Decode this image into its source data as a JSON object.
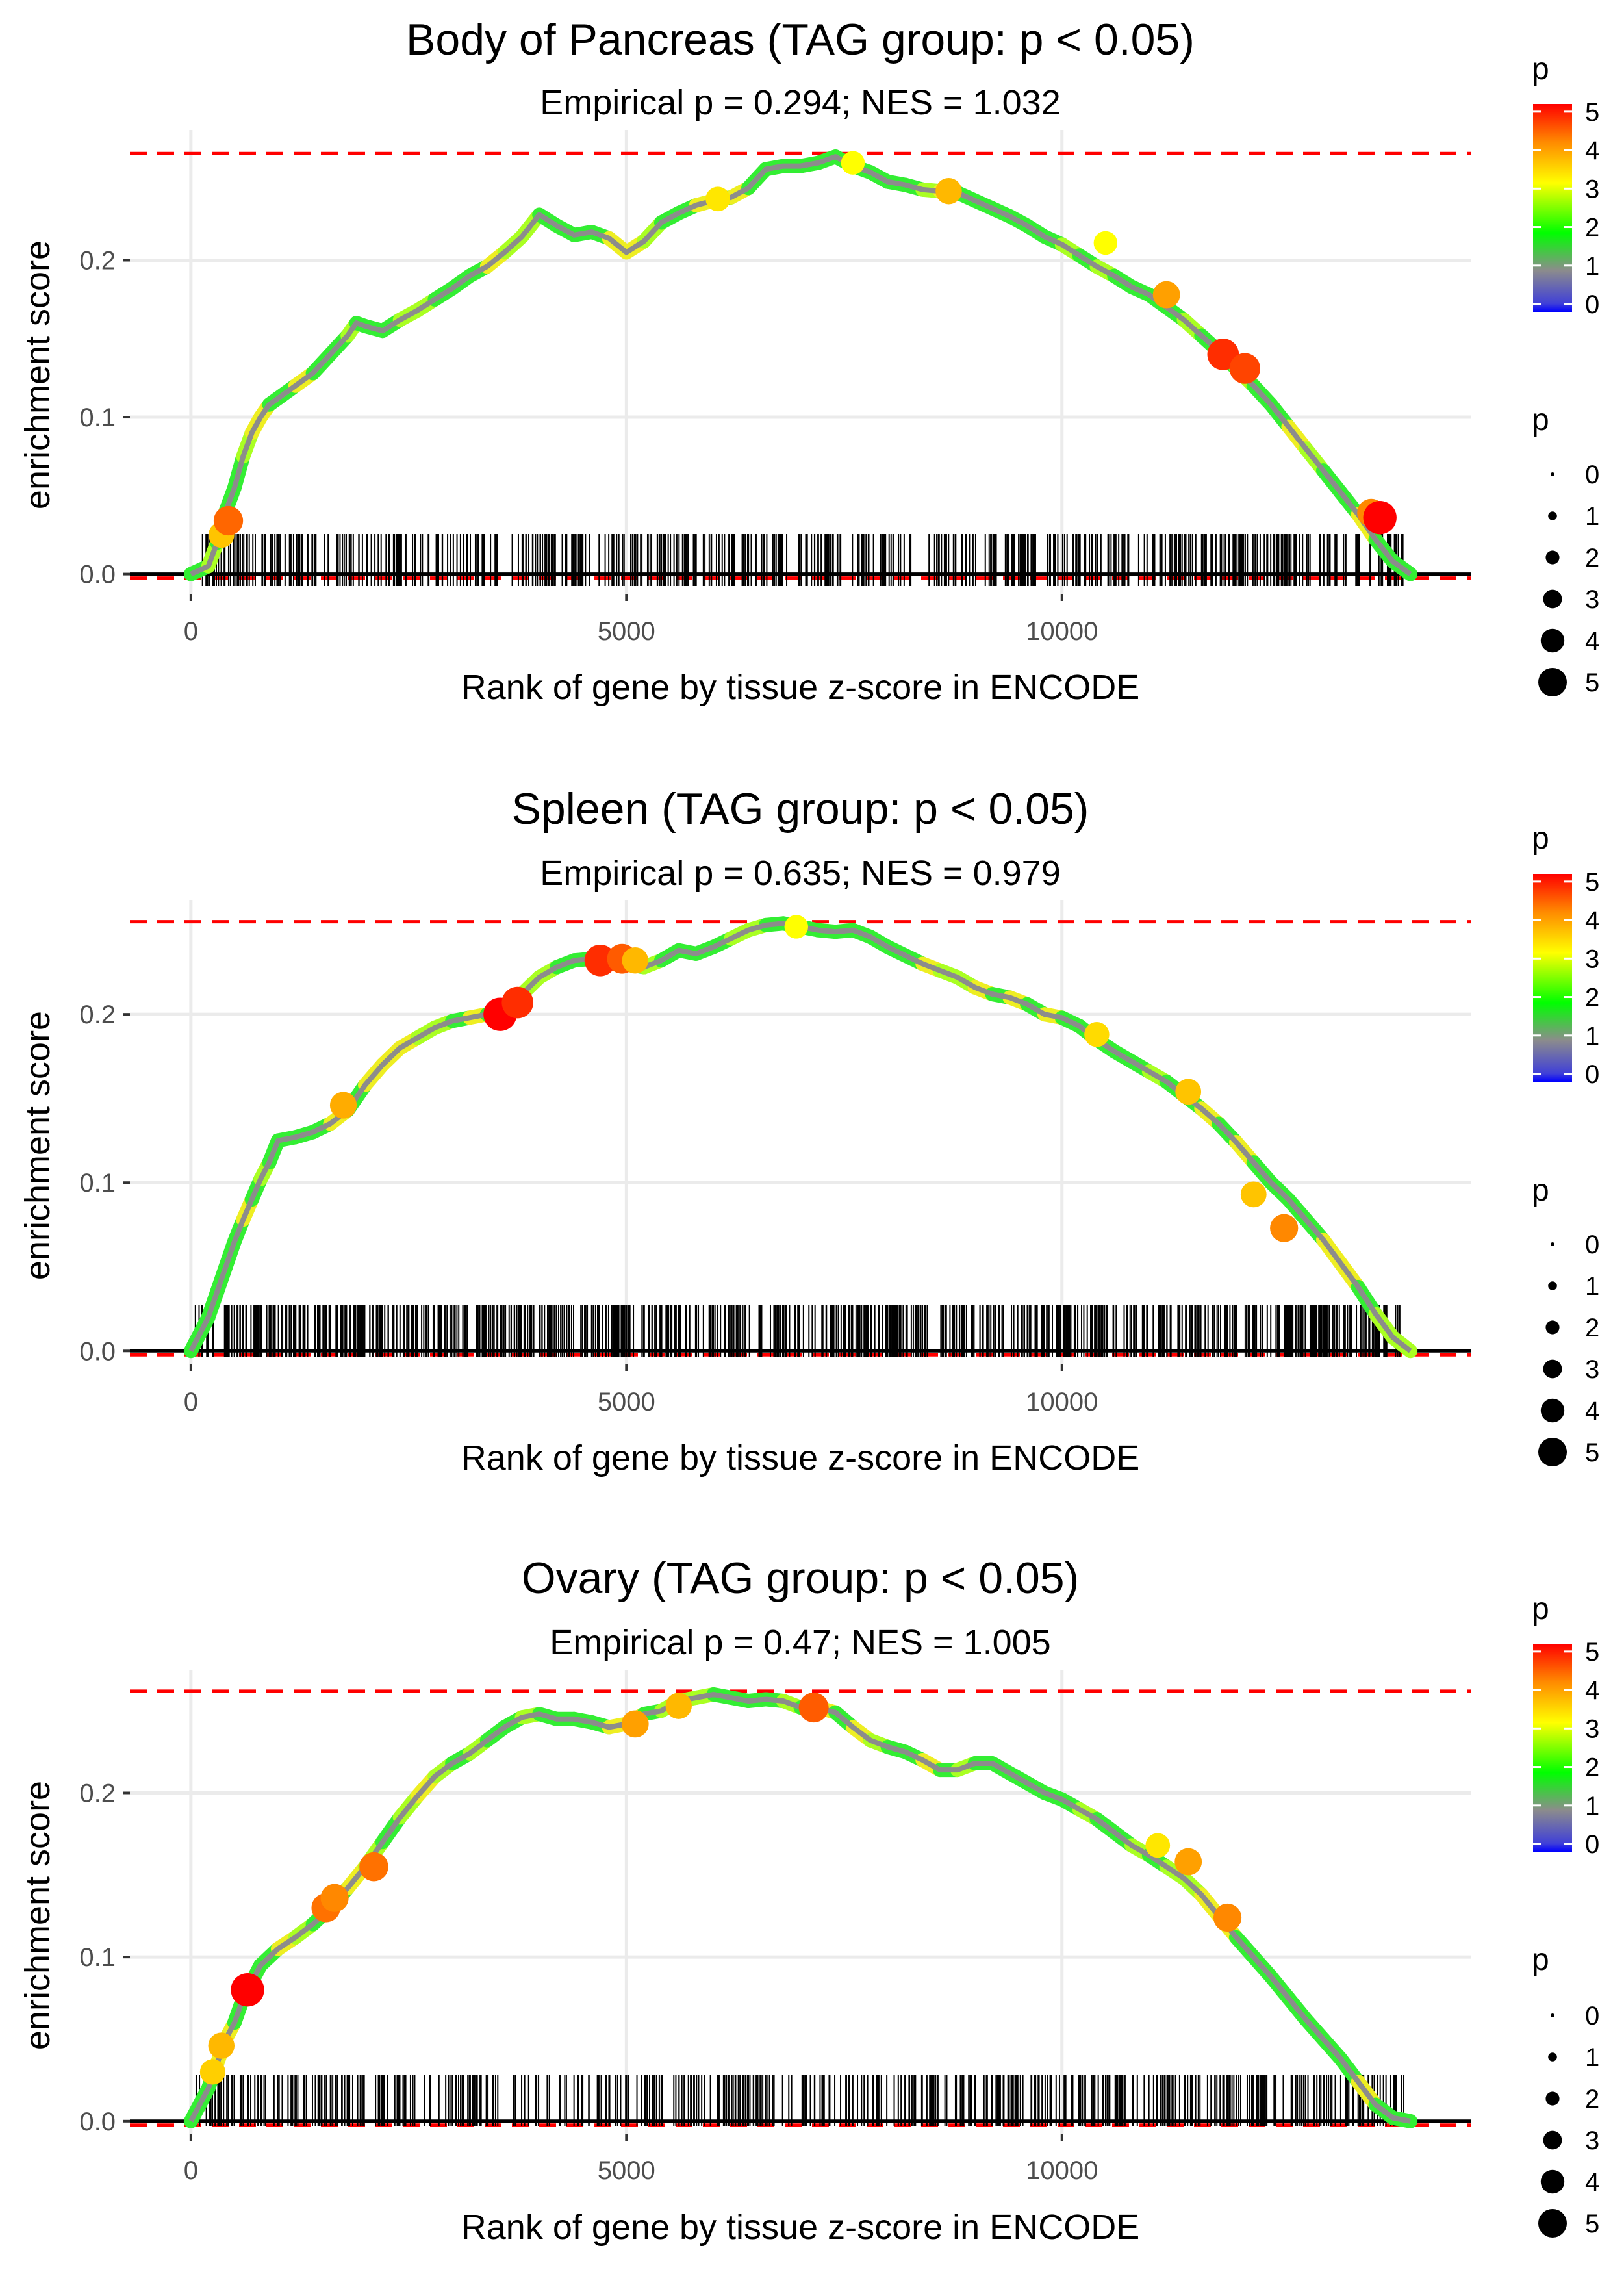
{
  "chart_data": [
    {
      "type": "line",
      "title": "Body of Pancreas (TAG group: p < 0.05)",
      "subtitle": "Empirical p = 0.294; NES = 1.032",
      "xlabel": "Rank of gene by tissue z-score in ENCODE",
      "ylabel": "enrichment score",
      "xlim": [
        -700,
        14700
      ],
      "ylim": [
        -0.013,
        0.283
      ],
      "xticks": [
        0,
        5000,
        10000
      ],
      "xtick_labels": [
        "0",
        "5000",
        "10000"
      ],
      "yticks": [
        0.0,
        0.1,
        0.2
      ],
      "ytick_labels": [
        "0.0",
        "0.1",
        "0.2"
      ],
      "max_es": 0.268,
      "curve": {
        "x": [
          0,
          200,
          300,
          400,
          500,
          600,
          700,
          800,
          900,
          1000,
          1200,
          1400,
          1600,
          1800,
          1900,
          2000,
          2200,
          2400,
          2600,
          2800,
          3000,
          3200,
          3400,
          3600,
          3800,
          4000,
          4200,
          4400,
          4600,
          4800,
          5000,
          5200,
          5400,
          5600,
          5800,
          6000,
          6200,
          6400,
          6600,
          6800,
          7000,
          7200,
          7400,
          7600,
          7800,
          8000,
          8200,
          8400,
          8600,
          8800,
          9000,
          9200,
          9400,
          9600,
          9800,
          10000,
          10200,
          10400,
          10600,
          10800,
          11000,
          11200,
          11400,
          11600,
          11800,
          12000,
          12200,
          12400,
          12600,
          12800,
          13000,
          13200,
          13400,
          13600,
          13800,
          14000
        ],
        "y": [
          0.0,
          0.005,
          0.02,
          0.04,
          0.055,
          0.075,
          0.09,
          0.1,
          0.108,
          0.112,
          0.12,
          0.128,
          0.14,
          0.152,
          0.16,
          0.158,
          0.155,
          0.162,
          0.168,
          0.175,
          0.182,
          0.19,
          0.196,
          0.205,
          0.215,
          0.229,
          0.222,
          0.216,
          0.218,
          0.214,
          0.205,
          0.212,
          0.224,
          0.23,
          0.235,
          0.238,
          0.24,
          0.246,
          0.258,
          0.26,
          0.26,
          0.262,
          0.266,
          0.26,
          0.256,
          0.25,
          0.248,
          0.245,
          0.244,
          0.243,
          0.238,
          0.233,
          0.228,
          0.222,
          0.215,
          0.21,
          0.203,
          0.196,
          0.19,
          0.183,
          0.178,
          0.17,
          0.162,
          0.152,
          0.142,
          0.131,
          0.12,
          0.108,
          0.094,
          0.08,
          0.066,
          0.052,
          0.038,
          0.022,
          0.008,
          0.0
        ]
      },
      "highlighted_points": {
        "x": [
          350,
          430,
          6050,
          7600,
          8700,
          10500,
          11200,
          11850,
          12100,
          13550,
          13650
        ],
        "y": [
          0.025,
          0.034,
          0.239,
          0.262,
          0.244,
          0.211,
          0.178,
          0.14,
          0.131,
          0.039,
          0.036
        ],
        "p": [
          3.5,
          4.3,
          3.2,
          3.0,
          3.6,
          3.0,
          3.8,
          4.8,
          4.6,
          4.0,
          5.2
        ]
      },
      "rug_seed": 11,
      "rug_count": 560
    },
    {
      "type": "line",
      "title": "Spleen (TAG group: p < 0.05)",
      "subtitle": "Empirical p = 0.635; NES = 0.979",
      "xlabel": "Rank of gene by tissue z-score in ENCODE",
      "ylabel": "enrichment score",
      "xlim": [
        -700,
        14700
      ],
      "ylim": [
        -0.008,
        0.268
      ],
      "xticks": [
        0,
        5000,
        10000
      ],
      "xtick_labels": [
        "0",
        "5000",
        "10000"
      ],
      "yticks": [
        0.0,
        0.1,
        0.2
      ],
      "ytick_labels": [
        "0.0",
        "0.1",
        "0.2"
      ],
      "max_es": 0.255,
      "curve": {
        "x": [
          0,
          200,
          300,
          400,
          500,
          600,
          700,
          800,
          900,
          1000,
          1200,
          1400,
          1600,
          1800,
          2000,
          2200,
          2400,
          2600,
          2800,
          3000,
          3200,
          3400,
          3600,
          3800,
          4000,
          4200,
          4400,
          4600,
          4800,
          5000,
          5200,
          5400,
          5600,
          5800,
          6000,
          6200,
          6400,
          6600,
          6800,
          7000,
          7200,
          7400,
          7600,
          7800,
          8000,
          8200,
          8400,
          8600,
          8800,
          9000,
          9200,
          9400,
          9600,
          9800,
          10000,
          10200,
          10400,
          10600,
          10800,
          11000,
          11200,
          11400,
          11600,
          11800,
          12000,
          12200,
          12400,
          12600,
          12800,
          13000,
          13200,
          13400,
          13600,
          13800,
          14000
        ],
        "y": [
          0.0,
          0.02,
          0.035,
          0.05,
          0.065,
          0.078,
          0.09,
          0.102,
          0.112,
          0.125,
          0.127,
          0.13,
          0.135,
          0.143,
          0.158,
          0.17,
          0.18,
          0.186,
          0.192,
          0.196,
          0.198,
          0.2,
          0.205,
          0.212,
          0.222,
          0.228,
          0.232,
          0.233,
          0.232,
          0.23,
          0.228,
          0.232,
          0.238,
          0.236,
          0.24,
          0.245,
          0.25,
          0.253,
          0.254,
          0.252,
          0.25,
          0.249,
          0.25,
          0.246,
          0.24,
          0.235,
          0.23,
          0.226,
          0.222,
          0.216,
          0.212,
          0.21,
          0.206,
          0.2,
          0.198,
          0.193,
          0.185,
          0.178,
          0.172,
          0.166,
          0.16,
          0.152,
          0.144,
          0.135,
          0.124,
          0.112,
          0.1,
          0.09,
          0.078,
          0.066,
          0.052,
          0.038,
          0.022,
          0.008,
          0.0
        ]
      },
      "highlighted_points": {
        "x": [
          1750,
          3550,
          3750,
          4700,
          4950,
          5100,
          6950,
          10400,
          11450,
          12200,
          12550
        ],
        "y": [
          0.146,
          0.2,
          0.207,
          0.232,
          0.233,
          0.232,
          0.252,
          0.188,
          0.154,
          0.093,
          0.073
        ],
        "p": [
          3.7,
          5.2,
          4.8,
          4.8,
          4.4,
          3.6,
          3.0,
          3.3,
          3.5,
          3.5,
          4.0
        ]
      },
      "rug_seed": 23,
      "rug_count": 720
    },
    {
      "type": "line",
      "title": "Ovary (TAG group: p < 0.05)",
      "subtitle": "Empirical p = 0.47; NES = 1.005",
      "xlabel": "Rank of gene by tissue z-score in ENCODE",
      "ylabel": "enrichment score",
      "xlim": [
        -700,
        14700
      ],
      "ylim": [
        -0.008,
        0.275
      ],
      "xticks": [
        0,
        5000,
        10000
      ],
      "xtick_labels": [
        "0",
        "5000",
        "10000"
      ],
      "yticks": [
        0.0,
        0.1,
        0.2
      ],
      "ytick_labels": [
        "0.0",
        "0.1",
        "0.2"
      ],
      "max_es": 0.262,
      "curve": {
        "x": [
          0,
          200,
          300,
          400,
          500,
          600,
          700,
          800,
          900,
          1000,
          1200,
          1400,
          1600,
          1800,
          2000,
          2200,
          2400,
          2600,
          2800,
          3000,
          3200,
          3400,
          3600,
          3800,
          4000,
          4200,
          4400,
          4600,
          4800,
          5000,
          5200,
          5400,
          5600,
          5800,
          6000,
          6200,
          6400,
          6600,
          6800,
          7000,
          7200,
          7400,
          7600,
          7800,
          8000,
          8200,
          8400,
          8600,
          8800,
          9000,
          9200,
          9400,
          9600,
          9800,
          10000,
          10200,
          10400,
          10600,
          10800,
          11000,
          11200,
          11400,
          11600,
          11800,
          12000,
          12200,
          12400,
          12600,
          12800,
          13000,
          13200,
          13400,
          13600,
          13800,
          14000
        ],
        "y": [
          0.0,
          0.02,
          0.035,
          0.05,
          0.06,
          0.075,
          0.085,
          0.095,
          0.1,
          0.105,
          0.112,
          0.12,
          0.13,
          0.142,
          0.155,
          0.17,
          0.185,
          0.198,
          0.21,
          0.218,
          0.224,
          0.232,
          0.24,
          0.246,
          0.248,
          0.245,
          0.245,
          0.243,
          0.24,
          0.242,
          0.248,
          0.25,
          0.256,
          0.258,
          0.26,
          0.258,
          0.256,
          0.257,
          0.256,
          0.252,
          0.252,
          0.249,
          0.24,
          0.232,
          0.228,
          0.225,
          0.22,
          0.214,
          0.214,
          0.218,
          0.218,
          0.212,
          0.206,
          0.2,
          0.196,
          0.19,
          0.184,
          0.176,
          0.168,
          0.162,
          0.155,
          0.148,
          0.138,
          0.125,
          0.112,
          0.1,
          0.088,
          0.075,
          0.062,
          0.05,
          0.038,
          0.024,
          0.01,
          0.002,
          0.0
        ]
      },
      "highlighted_points": {
        "x": [
          250,
          350,
          650,
          1550,
          1650,
          2100,
          5100,
          5600,
          7150,
          11100,
          11450,
          11900
        ],
        "y": [
          0.03,
          0.046,
          0.08,
          0.13,
          0.136,
          0.155,
          0.242,
          0.253,
          0.252,
          0.168,
          0.158,
          0.124
        ],
        "p": [
          3.4,
          3.6,
          5.2,
          4.2,
          4.0,
          4.2,
          3.8,
          3.6,
          4.4,
          3.2,
          3.8,
          4.0
        ]
      },
      "rug_seed": 37,
      "rug_count": 540
    }
  ],
  "legends": [
    {
      "color_title": "p",
      "color_labels": [
        "5",
        "4",
        "3",
        "2",
        "1",
        "0"
      ],
      "size_title": "p",
      "size_labels": [
        "0",
        "1",
        "2",
        "3",
        "4",
        "5"
      ]
    },
    {
      "color_title": "p",
      "color_labels": [
        "5",
        "4",
        "3",
        "2",
        "1",
        "0"
      ],
      "size_title": "p",
      "size_labels": [
        "0",
        "1",
        "2",
        "3",
        "4",
        "5"
      ]
    },
    {
      "color_title": "p",
      "color_labels": [
        "5",
        "4",
        "3",
        "2",
        "1",
        "0"
      ],
      "size_title": "p",
      "size_labels": [
        "0",
        "1",
        "2",
        "3",
        "4",
        "5"
      ]
    }
  ],
  "colors": {
    "max_es_line": "#ff0000",
    "baseline": "#000000",
    "curve": "#8c8c8c",
    "gridline": "#ebebeb",
    "scale_low": "#0000ff",
    "scale_mid1": "#808080",
    "scale_mid2": "#00ff00",
    "scale_mid3": "#ffff00",
    "scale_high": "#ff0000"
  }
}
